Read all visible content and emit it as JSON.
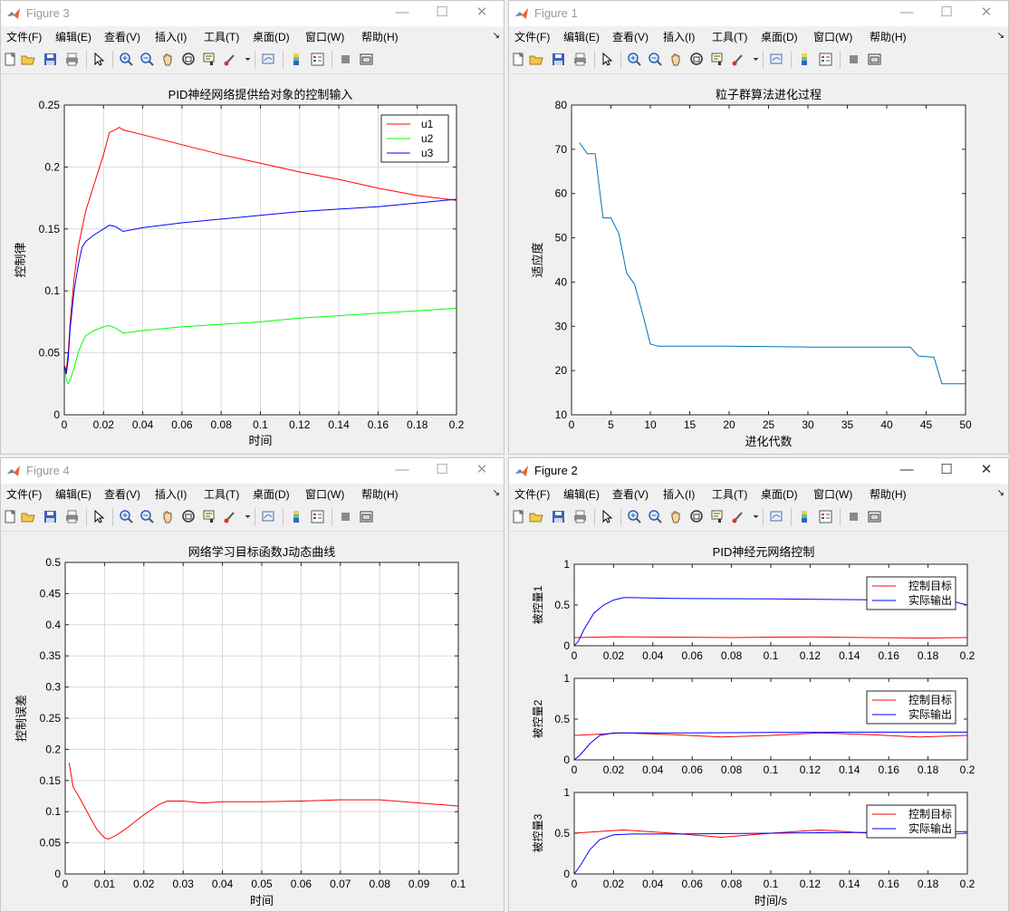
{
  "menu_items": [
    "文件(F)",
    "编辑(E)",
    "查看(V)",
    "插入(I)",
    "工具(T)",
    "桌面(D)",
    "窗口(W)",
    "帮助(H)"
  ],
  "colors": {
    "red": "#ff0000",
    "green": "#00ff00",
    "blue": "#0000ff",
    "matlab_blue": "#0072bd",
    "grid": "#d9d9d9"
  },
  "figures": [
    {
      "id": "fig3",
      "title": "Figure 3",
      "active": false,
      "chart_data": {
        "type": "line",
        "title": "PID神经网络提供给对象的控制输入",
        "xlabel": "时间",
        "ylabel": "控制律",
        "xlim": [
          0,
          0.2
        ],
        "ylim": [
          0,
          0.25
        ],
        "xticks": [
          "0",
          "0.02",
          "0.04",
          "0.06",
          "0.08",
          "0.1",
          "0.12",
          "0.14",
          "0.16",
          "0.18",
          "0.2"
        ],
        "yticks": [
          "0",
          "0.05",
          "0.1",
          "0.15",
          "0.2",
          "0.25"
        ],
        "grid": true,
        "legend": "top-right",
        "series": [
          {
            "name": "u1",
            "color": "#ff0000",
            "x": [
              0,
              0.001,
              0.002,
              0.003,
              0.005,
              0.007,
              0.009,
              0.011,
              0.015,
              0.02,
              0.023,
              0.026,
              0.028,
              0.03,
              0.04,
              0.06,
              0.08,
              0.1,
              0.12,
              0.14,
              0.16,
              0.18,
              0.2
            ],
            "y": [
              0.04,
              0.036,
              0.05,
              0.075,
              0.11,
              0.135,
              0.15,
              0.165,
              0.185,
              0.21,
              0.228,
              0.23,
              0.232,
              0.23,
              0.226,
              0.218,
              0.21,
              0.203,
              0.196,
              0.19,
              0.183,
              0.177,
              0.173
            ]
          },
          {
            "name": "u2",
            "color": "#00ff00",
            "x": [
              0,
              0.001,
              0.002,
              0.003,
              0.005,
              0.007,
              0.009,
              0.011,
              0.015,
              0.02,
              0.023,
              0.026,
              0.028,
              0.03,
              0.04,
              0.06,
              0.08,
              0.1,
              0.12,
              0.14,
              0.16,
              0.18,
              0.2
            ],
            "y": [
              0.04,
              0.028,
              0.025,
              0.028,
              0.038,
              0.05,
              0.058,
              0.064,
              0.068,
              0.071,
              0.072,
              0.07,
              0.068,
              0.066,
              0.068,
              0.071,
              0.073,
              0.075,
              0.078,
              0.08,
              0.082,
              0.084,
              0.086
            ]
          },
          {
            "name": "u3",
            "color": "#0000ff",
            "x": [
              0,
              0.001,
              0.002,
              0.003,
              0.005,
              0.007,
              0.009,
              0.011,
              0.015,
              0.02,
              0.023,
              0.026,
              0.028,
              0.03,
              0.04,
              0.06,
              0.08,
              0.1,
              0.12,
              0.14,
              0.16,
              0.18,
              0.2
            ],
            "y": [
              0.04,
              0.033,
              0.045,
              0.07,
              0.1,
              0.12,
              0.135,
              0.14,
              0.145,
              0.15,
              0.153,
              0.152,
              0.15,
              0.148,
              0.151,
              0.155,
              0.158,
              0.161,
              0.164,
              0.166,
              0.168,
              0.171,
              0.174
            ]
          }
        ]
      }
    },
    {
      "id": "fig1",
      "title": "Figure 1",
      "active": false,
      "chart_data": {
        "type": "line",
        "title": "粒子群算法进化过程",
        "xlabel": "进化代数",
        "ylabel": "适应度",
        "xlim": [
          0,
          50
        ],
        "ylim": [
          10,
          80
        ],
        "xticks": [
          "0",
          "5",
          "10",
          "15",
          "20",
          "25",
          "30",
          "35",
          "40",
          "45",
          "50"
        ],
        "yticks": [
          "10",
          "20",
          "30",
          "40",
          "50",
          "60",
          "70",
          "80"
        ],
        "grid": false,
        "series": [
          {
            "color": "#0072bd",
            "x": [
              1,
              2,
              3,
              4,
              5,
              6,
              7,
              8,
              9,
              10,
              11,
              12,
              20,
              30,
              40,
              43,
              44,
              46,
              47,
              50
            ],
            "y": [
              71.5,
              69,
              69,
              54.5,
              54.5,
              51,
              42,
              39.5,
              33,
              26,
              25.5,
              25.5,
              25.5,
              25.3,
              25.3,
              25.3,
              23.3,
              23,
              17,
              17
            ]
          }
        ]
      }
    },
    {
      "id": "fig4",
      "title": "Figure 4",
      "active": false,
      "chart_data": {
        "type": "line",
        "title": "网络学习目标函数J动态曲线",
        "xlabel": "时间",
        "ylabel": "控制误差",
        "xlim": [
          0,
          0.1
        ],
        "ylim": [
          0,
          0.5
        ],
        "xticks": [
          "0",
          "0.01",
          "0.02",
          "0.03",
          "0.04",
          "0.05",
          "0.06",
          "0.07",
          "0.08",
          "0.09",
          "0.1"
        ],
        "yticks": [
          "0",
          "0.05",
          "0.1",
          "0.15",
          "0.2",
          "0.25",
          "0.3",
          "0.35",
          "0.4",
          "0.45",
          "0.5"
        ],
        "grid": true,
        "series": [
          {
            "color": "#ff0000",
            "x": [
              0.001,
              0.002,
              0.004,
              0.006,
              0.008,
              0.01,
              0.011,
              0.013,
              0.016,
              0.02,
              0.024,
              0.026,
              0.03,
              0.035,
              0.04,
              0.05,
              0.06,
              0.07,
              0.08,
              0.09,
              0.1
            ],
            "y": [
              0.178,
              0.14,
              0.118,
              0.095,
              0.072,
              0.058,
              0.056,
              0.062,
              0.075,
              0.095,
              0.112,
              0.117,
              0.117,
              0.114,
              0.116,
              0.116,
              0.117,
              0.119,
              0.119,
              0.114,
              0.109
            ]
          }
        ]
      }
    },
    {
      "id": "fig2",
      "title": "Figure 2",
      "active": true,
      "figure_title": "PID神经元网络控制",
      "chart_data": [
        {
          "type": "line",
          "xlabel": "",
          "ylabel": "被控量1",
          "xlim": [
            0,
            0.2
          ],
          "ylim": [
            0,
            1
          ],
          "xticks": [
            "0",
            "0.02",
            "0.04",
            "0.06",
            "0.08",
            "0.1",
            "0.12",
            "0.14",
            "0.16",
            "0.18",
            "0.2"
          ],
          "yticks": [
            "0",
            "0.5",
            "1"
          ],
          "grid": false,
          "legend": "top-right",
          "series": [
            {
              "name": "控制目标",
              "color": "#ff0000",
              "x": [
                0,
                0.02,
                0.05,
                0.08,
                0.1,
                0.12,
                0.15,
                0.18,
                0.2
              ],
              "y": [
                0.1,
                0.11,
                0.105,
                0.1,
                0.105,
                0.108,
                0.1,
                0.095,
                0.1
              ]
            },
            {
              "name": "实际输出",
              "color": "#0000ff",
              "x": [
                0,
                0.002,
                0.005,
                0.01,
                0.015,
                0.02,
                0.025,
                0.03,
                0.05,
                0.1,
                0.15,
                0.19,
                0.2
              ],
              "y": [
                0,
                0.05,
                0.2,
                0.4,
                0.5,
                0.56,
                0.59,
                0.59,
                0.58,
                0.575,
                0.565,
                0.56,
                0.5
              ]
            }
          ]
        },
        {
          "type": "line",
          "xlabel": "",
          "ylabel": "被控量2",
          "xlim": [
            0,
            0.2
          ],
          "ylim": [
            0,
            1
          ],
          "xticks": [
            "0",
            "0.02",
            "0.04",
            "0.06",
            "0.08",
            "0.1",
            "0.12",
            "0.14",
            "0.16",
            "0.18",
            "0.2"
          ],
          "yticks": [
            "0",
            "0.5",
            "1"
          ],
          "grid": false,
          "legend": "top-right",
          "series": [
            {
              "name": "控制目标",
              "color": "#ff0000",
              "x": [
                0,
                0.025,
                0.05,
                0.075,
                0.1,
                0.125,
                0.15,
                0.175,
                0.2
              ],
              "y": [
                0.3,
                0.33,
                0.31,
                0.28,
                0.3,
                0.33,
                0.31,
                0.28,
                0.3
              ]
            },
            {
              "name": "实际输出",
              "color": "#0000ff",
              "x": [
                0,
                0.003,
                0.008,
                0.013,
                0.02,
                0.03,
                0.05,
                0.1,
                0.15,
                0.2
              ],
              "y": [
                0,
                0.06,
                0.2,
                0.3,
                0.33,
                0.33,
                0.33,
                0.335,
                0.34,
                0.34
              ]
            }
          ]
        },
        {
          "type": "line",
          "xlabel": "时间/s",
          "ylabel": "被控量3",
          "xlim": [
            0,
            0.2
          ],
          "ylim": [
            0,
            1
          ],
          "xticks": [
            "0",
            "0.02",
            "0.04",
            "0.06",
            "0.08",
            "0.1",
            "0.12",
            "0.14",
            "0.16",
            "0.18",
            "0.2"
          ],
          "yticks": [
            "0",
            "0.5",
            "1"
          ],
          "grid": false,
          "legend": "top-right",
          "series": [
            {
              "name": "控制目标",
              "color": "#ff0000",
              "x": [
                0,
                0.025,
                0.05,
                0.075,
                0.1,
                0.125,
                0.15,
                0.175,
                0.2
              ],
              "y": [
                0.5,
                0.54,
                0.5,
                0.45,
                0.5,
                0.54,
                0.5,
                0.46,
                0.5
              ]
            },
            {
              "name": "实际输出",
              "color": "#0000ff",
              "x": [
                0,
                0.003,
                0.008,
                0.013,
                0.02,
                0.03,
                0.05,
                0.1,
                0.15,
                0.2
              ],
              "y": [
                0,
                0.1,
                0.3,
                0.42,
                0.48,
                0.49,
                0.49,
                0.5,
                0.51,
                0.52
              ]
            }
          ]
        }
      ]
    }
  ]
}
